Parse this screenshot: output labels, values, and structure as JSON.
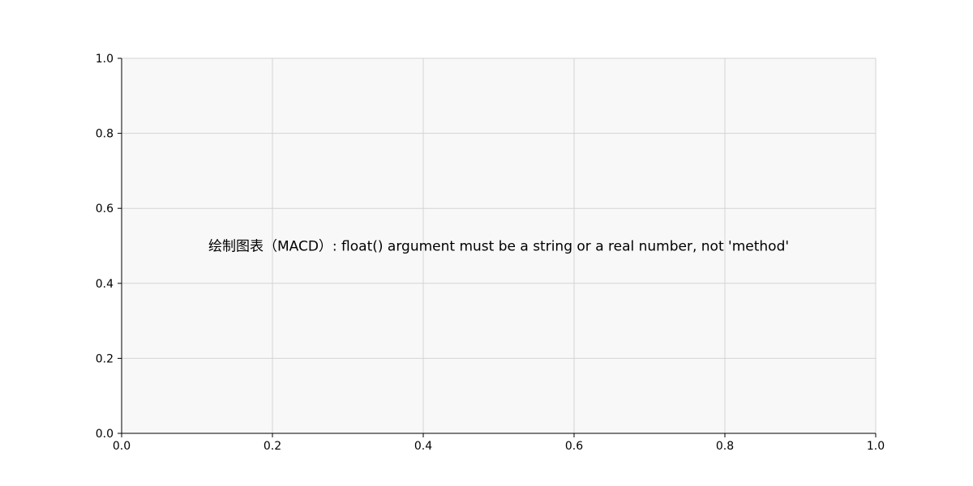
{
  "chart_data": {
    "type": "line",
    "title": "",
    "xlabel": "",
    "ylabel": "",
    "xlim": [
      0.0,
      1.0
    ],
    "ylim": [
      0.0,
      1.0
    ],
    "x_ticks": [
      "0.0",
      "0.2",
      "0.4",
      "0.6",
      "0.8",
      "1.0"
    ],
    "y_ticks": [
      "0.0",
      "0.2",
      "0.4",
      "0.6",
      "0.8",
      "1.0"
    ],
    "grid": true,
    "series": [],
    "annotation": "绘制图表（MACD）: float() argument must be a string or a real number, not 'method'"
  },
  "colors": {
    "plot_background": "#f8f8f8",
    "grid": "#d3d3d3",
    "axis": "#000000"
  }
}
